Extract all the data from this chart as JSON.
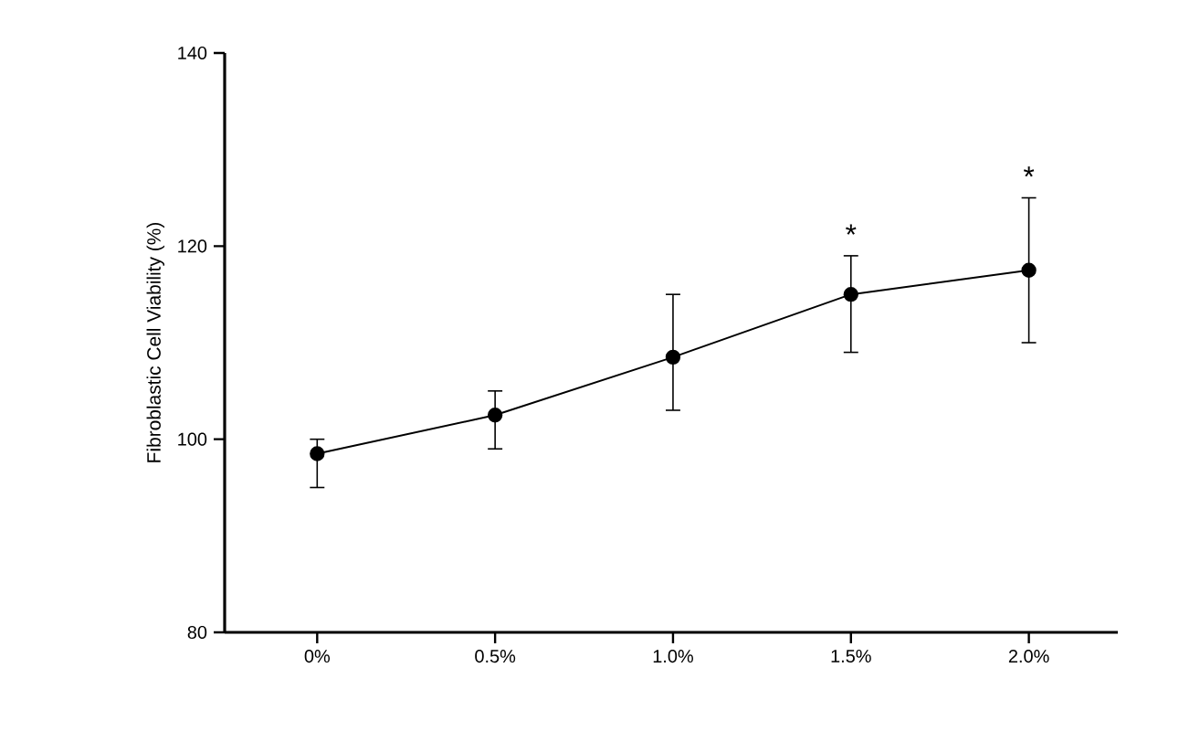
{
  "chart_data": {
    "type": "line",
    "ylabel": "Fibroblastic Cell Viability (%)",
    "categories": [
      "0%",
      "0.5%",
      "1.0%",
      "1.5%",
      "2.0%"
    ],
    "series": [
      {
        "color": "#000000",
        "values": [
          98.5,
          102.5,
          108.5,
          115,
          117.5
        ],
        "errors": [
          [
            95,
            100
          ],
          [
            99,
            105
          ],
          [
            103,
            115
          ],
          [
            109,
            119
          ],
          [
            110,
            125
          ]
        ]
      }
    ],
    "ylim": [
      80,
      140
    ],
    "yticks": [
      80,
      100,
      120,
      140
    ],
    "marker": "circle",
    "line_style": "solid",
    "grid": false,
    "legend": false,
    "annotations": [
      "*",
      "*"
    ]
  }
}
